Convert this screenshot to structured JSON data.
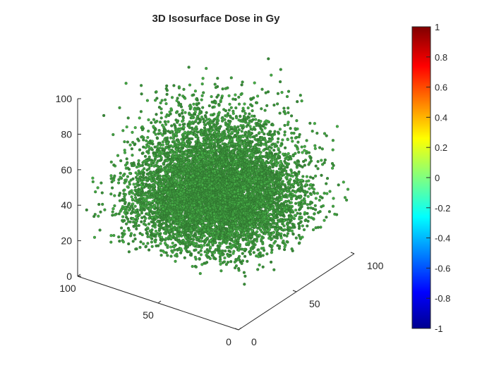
{
  "chart_data": {
    "type": "scatter",
    "title": "3D Isosurface Dose in Gy",
    "xlabel": "",
    "ylabel": "",
    "zlabel": "",
    "xlim": [
      0,
      100
    ],
    "ylim": [
      0,
      100
    ],
    "zlim": [
      0,
      100
    ],
    "x_ticks": [
      "0",
      "50",
      "100"
    ],
    "y_ticks": [
      "0",
      "50",
      "100"
    ],
    "z_ticks": [
      "0",
      "20",
      "40",
      "60",
      "80",
      "100"
    ],
    "marker_color": "#3f9a3f",
    "marker_edge_color": "#2a6a2a",
    "distribution": {
      "description": "dense cloud of point markers",
      "center": [
        50,
        50,
        30
      ],
      "approx_point_count": 9000
    },
    "colorbar": {
      "colormap": "jet",
      "range": [
        -1,
        1
      ],
      "ticks": [
        "1",
        "0.8",
        "0.6",
        "0.4",
        "0.2",
        "0",
        "-0.2",
        "-0.4",
        "-0.6",
        "-0.8",
        "-1"
      ]
    }
  }
}
